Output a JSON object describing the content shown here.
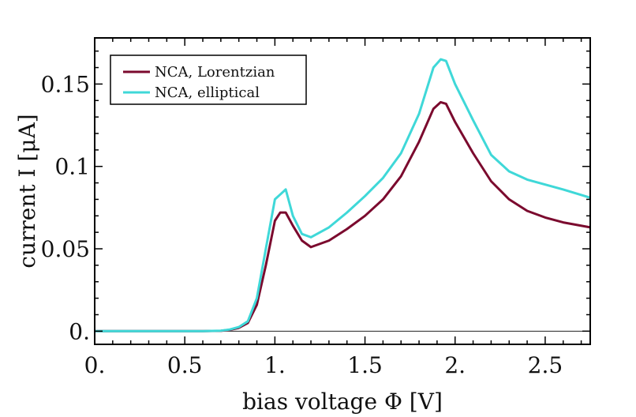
{
  "chart_data": {
    "type": "line",
    "xlabel": "bias voltage Φ [V]",
    "ylabel": "current I [μA]",
    "xlim": [
      0,
      2.75
    ],
    "ylim": [
      -0.008,
      0.178
    ],
    "xticks": [
      {
        "value": 0,
        "label": "0."
      },
      {
        "value": 0.5,
        "label": "0.5"
      },
      {
        "value": 1.0,
        "label": "1."
      },
      {
        "value": 1.5,
        "label": "1.5"
      },
      {
        "value": 2.0,
        "label": "2."
      },
      {
        "value": 2.5,
        "label": "2.5"
      }
    ],
    "yticks": [
      {
        "value": 0,
        "label": "0."
      },
      {
        "value": 0.05,
        "label": "0.05"
      },
      {
        "value": 0.1,
        "label": "0.1"
      },
      {
        "value": 0.15,
        "label": "0.15"
      }
    ],
    "legend_position": "top-left",
    "series": [
      {
        "name": "NCA, Lorentzian",
        "color": "#7b0a2e",
        "x": [
          0,
          0.2,
          0.4,
          0.6,
          0.7,
          0.75,
          0.8,
          0.85,
          0.9,
          0.95,
          1.0,
          1.03,
          1.06,
          1.1,
          1.15,
          1.2,
          1.3,
          1.4,
          1.5,
          1.6,
          1.7,
          1.8,
          1.88,
          1.92,
          1.95,
          2.0,
          2.1,
          2.2,
          2.3,
          2.4,
          2.5,
          2.6,
          2.75
        ],
        "y": [
          0,
          0,
          0,
          0,
          0.0002,
          0.0008,
          0.002,
          0.005,
          0.016,
          0.04,
          0.067,
          0.072,
          0.072,
          0.064,
          0.055,
          0.051,
          0.055,
          0.062,
          0.07,
          0.08,
          0.094,
          0.115,
          0.135,
          0.139,
          0.138,
          0.127,
          0.108,
          0.091,
          0.08,
          0.073,
          0.069,
          0.066,
          0.063
        ]
      },
      {
        "name": "NCA, elliptical",
        "color": "#3fd8d8",
        "x": [
          0,
          0.2,
          0.4,
          0.6,
          0.7,
          0.75,
          0.8,
          0.85,
          0.9,
          0.95,
          1.0,
          1.03,
          1.06,
          1.1,
          1.15,
          1.2,
          1.3,
          1.4,
          1.5,
          1.6,
          1.7,
          1.8,
          1.88,
          1.92,
          1.95,
          2.0,
          2.1,
          2.2,
          2.3,
          2.4,
          2.5,
          2.6,
          2.75
        ],
        "y": [
          0,
          0,
          0,
          0,
          0.0003,
          0.001,
          0.0025,
          0.006,
          0.02,
          0.05,
          0.08,
          0.083,
          0.086,
          0.07,
          0.059,
          0.057,
          0.063,
          0.072,
          0.082,
          0.093,
          0.108,
          0.132,
          0.16,
          0.165,
          0.164,
          0.15,
          0.128,
          0.107,
          0.097,
          0.092,
          0.089,
          0.086,
          0.081
        ]
      }
    ]
  }
}
